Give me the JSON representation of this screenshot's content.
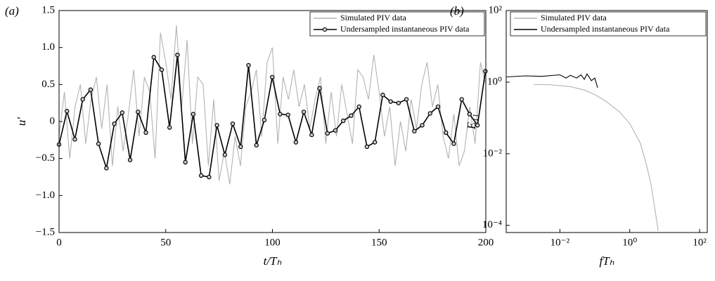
{
  "chart_data": [
    {
      "type": "line",
      "panel_label": "(a)",
      "x_label": "t/Tₕ",
      "y_label": "u′",
      "xlim": [
        0,
        200
      ],
      "ylim": [
        -1.5,
        1.5
      ],
      "xticks": [
        0,
        50,
        100,
        150,
        200
      ],
      "yticks": [
        {
          "value": -1.5,
          "label": "−1.5"
        },
        {
          "value": -1,
          "label": "−1.0"
        },
        {
          "value": -0.5,
          "label": "−0.5"
        },
        0,
        0.5,
        {
          "value": 1,
          "label": "1.0"
        },
        1.5
      ],
      "legend": "upper right",
      "series": [
        {
          "name": "Simulated PIV data",
          "color": "#b3b3b3",
          "marker": false,
          "x": [
            0,
            2.5,
            5,
            7.5,
            10,
            12.5,
            15,
            17.5,
            20,
            22.5,
            25,
            27.5,
            30,
            32.5,
            35,
            37.5,
            40,
            42.5,
            45,
            47.5,
            50,
            52.5,
            55,
            57.5,
            60,
            62.5,
            65,
            67.5,
            70,
            72.5,
            75,
            77.5,
            80,
            82.5,
            85,
            87.5,
            90,
            92.5,
            95,
            97.5,
            100,
            102.5,
            105,
            107.5,
            110,
            112.5,
            115,
            117.5,
            120,
            122.5,
            125,
            127.5,
            130,
            132.5,
            135,
            137.5,
            140,
            142.5,
            145,
            147.5,
            150,
            152.5,
            155,
            157.5,
            160,
            162.5,
            165,
            167.5,
            170,
            172.5,
            175,
            177.5,
            180,
            182.5,
            185,
            187.5,
            190,
            192.5,
            195,
            197.5,
            200
          ],
          "values": [
            -0.2,
            0.4,
            -0.5,
            0.2,
            0.5,
            -0.3,
            0.3,
            0.6,
            -0.1,
            0.5,
            -0.6,
            0.2,
            -0.4,
            0.1,
            0.7,
            -0.2,
            0.6,
            0.4,
            -0.5,
            1.2,
            0.8,
            0.3,
            1.3,
            0.2,
            1.1,
            -0.3,
            0.6,
            0.5,
            -0.6,
            0.3,
            -0.8,
            -0.4,
            -0.85,
            -0.2,
            -0.6,
            0.2,
            0.4,
            0.7,
            -0.2,
            0.8,
            1.0,
            -0.3,
            0.6,
            0.3,
            0.7,
            0.2,
            0.5,
            -0.1,
            0.3,
            0.6,
            -0.3,
            0.4,
            -0.2,
            0.5,
            0.1,
            -0.3,
            0.7,
            0.6,
            0.3,
            0.9,
            0.4,
            -0.2,
            0.2,
            -0.6,
            0.0,
            -0.4,
            0.3,
            -0.1,
            0.5,
            0.8,
            0.2,
            0.5,
            -0.2,
            -0.5,
            0.1,
            -0.6,
            -0.4,
            0.2,
            -0.3,
            0.8,
            0.5
          ]
        },
        {
          "name": "Undersampled instantaneous PIV data",
          "color": "#000000",
          "marker": true,
          "x": [
            0,
            3.7,
            7.4,
            11.1,
            14.8,
            18.5,
            22.2,
            25.9,
            29.6,
            33.3,
            37,
            40.7,
            44.4,
            48.1,
            51.8,
            55.5,
            59.2,
            62.9,
            66.6,
            70.3,
            74,
            77.7,
            81.4,
            85.1,
            88.8,
            92.5,
            96.2,
            99.9,
            103.6,
            107.3,
            111,
            114.7,
            118.4,
            122.1,
            125.8,
            129.5,
            133.2,
            136.9,
            140.6,
            144.3,
            148,
            151.7,
            155.4,
            159.1,
            162.8,
            166.5,
            170.2,
            173.9,
            177.6,
            181.3,
            185,
            188.7,
            192.4,
            196.1,
            199.8
          ],
          "values": [
            -0.31,
            0.14,
            -0.24,
            0.3,
            0.43,
            -0.3,
            -0.63,
            -0.03,
            0.12,
            -0.52,
            0.13,
            -0.15,
            0.87,
            0.7,
            -0.08,
            0.9,
            -0.55,
            0.1,
            -0.73,
            -0.75,
            -0.05,
            -0.45,
            -0.03,
            -0.34,
            0.76,
            -0.32,
            0.02,
            0.6,
            0.1,
            0.09,
            -0.28,
            0.13,
            -0.18,
            0.45,
            -0.16,
            -0.12,
            0.01,
            0.08,
            0.2,
            -0.34,
            -0.28,
            0.36,
            0.27,
            0.25,
            0.3,
            -0.13,
            -0.05,
            0.11,
            0.2,
            -0.15,
            -0.3,
            0.3,
            0.1,
            -0.05,
            0.68
          ]
        }
      ]
    },
    {
      "type": "line",
      "panel_label": "(b)",
      "x_label": "fTₕ",
      "y_label": "E₁₁",
      "log_x": true,
      "log_y": true,
      "xlim": [
        0.00029,
        166
      ],
      "ylim": [
        6.3e-05,
        100
      ],
      "xticks": [
        {
          "value": 0.01,
          "label": "10⁻²"
        },
        {
          "value": 1,
          "label": "10⁰"
        },
        {
          "value": 100,
          "label": "10²"
        }
      ],
      "yticks": [
        {
          "value": 0.0001,
          "label": "10⁻⁴"
        },
        {
          "value": 0.01,
          "label": "10⁻²"
        },
        {
          "value": 1,
          "label": "10⁰"
        },
        {
          "value": 100,
          "label": "10²"
        }
      ],
      "legend": "upper right",
      "series": [
        {
          "name": "Simulated PIV data",
          "color": "#b3b3b3",
          "marker": false,
          "x": [
            0.0018,
            0.005,
            0.01,
            0.02,
            0.05,
            0.1,
            0.2,
            0.5,
            1,
            2,
            3,
            4,
            5,
            6,
            6.5
          ],
          "values": [
            0.85,
            0.85,
            0.8,
            0.75,
            0.6,
            0.45,
            0.3,
            0.15,
            0.07,
            0.02,
            0.005,
            0.0015,
            0.0004,
            0.00012,
            7e-05
          ]
        },
        {
          "name": "Undersampled instantaneous PIV data",
          "color": "#000000",
          "marker": false,
          "x": [
            0.0003,
            0.001,
            0.003,
            0.01,
            0.015,
            0.02,
            0.03,
            0.04,
            0.05,
            0.06,
            0.08,
            0.1,
            0.12
          ],
          "values": [
            1.4,
            1.5,
            1.45,
            1.6,
            1.3,
            1.55,
            1.3,
            1.6,
            1.2,
            1.7,
            1.1,
            1.3,
            0.7
          ]
        }
      ]
    }
  ]
}
